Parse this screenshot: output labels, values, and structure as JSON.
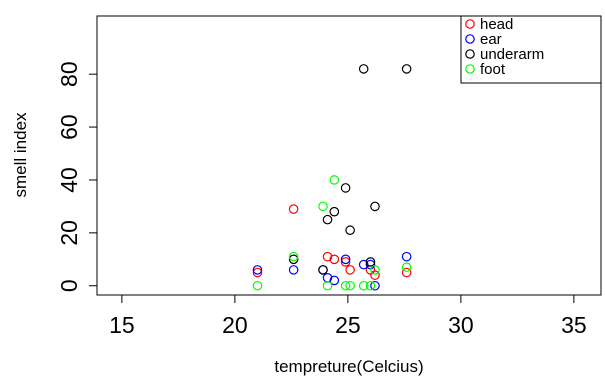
{
  "chart_data": {
    "type": "scatter",
    "title": "",
    "xlabel": "tempreture(Celcius)",
    "ylabel": "smell index",
    "xlim": [
      13.9,
      36.2
    ],
    "ylim": [
      -3.5,
      102
    ],
    "xticks": [
      15,
      20,
      25,
      30,
      35
    ],
    "yticks": [
      0,
      20,
      40,
      60,
      80
    ],
    "grid": false,
    "legend_position": "top-right",
    "series": [
      {
        "name": "head",
        "color": "#ff0000",
        "points": [
          [
            21.0,
            5
          ],
          [
            22.6,
            29
          ],
          [
            24.1,
            11
          ],
          [
            24.4,
            10
          ],
          [
            24.9,
            9
          ],
          [
            25.1,
            6
          ],
          [
            26.0,
            6
          ],
          [
            26.2,
            4
          ],
          [
            27.6,
            5
          ]
        ]
      },
      {
        "name": "ear",
        "color": "#0000ff",
        "points": [
          [
            21.0,
            6
          ],
          [
            22.6,
            6
          ],
          [
            23.9,
            6
          ],
          [
            24.1,
            3
          ],
          [
            24.4,
            2
          ],
          [
            24.9,
            10
          ],
          [
            25.7,
            8
          ],
          [
            26.0,
            8
          ],
          [
            26.2,
            0
          ],
          [
            27.6,
            11
          ]
        ]
      },
      {
        "name": "underarm",
        "color": "#000000",
        "points": [
          [
            22.6,
            10
          ],
          [
            23.9,
            6
          ],
          [
            24.1,
            25
          ],
          [
            24.4,
            28
          ],
          [
            24.9,
            37
          ],
          [
            25.1,
            21
          ],
          [
            25.7,
            82
          ],
          [
            26.0,
            9
          ],
          [
            26.2,
            30
          ],
          [
            27.6,
            82
          ]
        ]
      },
      {
        "name": "foot",
        "color": "#00ff00",
        "points": [
          [
            21.0,
            0
          ],
          [
            22.6,
            11
          ],
          [
            23.9,
            30
          ],
          [
            24.1,
            0
          ],
          [
            24.4,
            40
          ],
          [
            24.9,
            0
          ],
          [
            25.1,
            0
          ],
          [
            25.7,
            0
          ],
          [
            26.0,
            0
          ],
          [
            26.2,
            6
          ],
          [
            27.6,
            7
          ]
        ]
      }
    ]
  }
}
